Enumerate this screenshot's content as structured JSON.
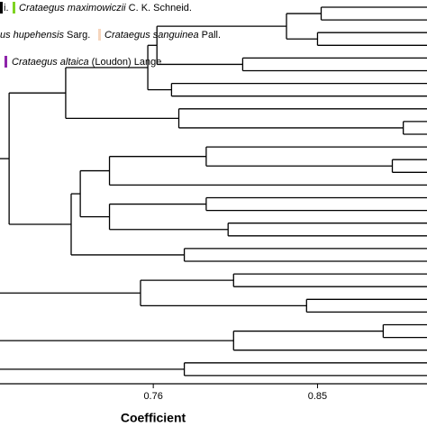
{
  "chart_data": {
    "type": "dendrogram",
    "x_label": "Coefficient",
    "xlim": [
      0.676,
      0.91
    ],
    "xticks": [
      0.76,
      0.85
    ],
    "legend": [
      {
        "name": "i.",
        "color": "#000000"
      },
      {
        "name": "Crataegus maximowiczii",
        "author": "C. K. Schneid.",
        "color": "#7ed321"
      },
      {
        "name": "us hupehensis",
        "author": "Sarg."
      },
      {
        "name": "Crataegus sanguinea",
        "author": "Pall.",
        "color": "#f5d5bd"
      },
      {
        "name": "Crataegus altaica",
        "author": "(Loudon) Lange",
        "color": "#8e24aa"
      }
    ],
    "trees": [
      {
        "height": 0.681,
        "children": [
          {
            "height": 0.712,
            "children": [
              {
                "height": 0.757,
                "children": [
                  {
                    "height": 0.762,
                    "children": [
                      {
                        "height": 0.833,
                        "children": [
                          {
                            "height": 0.852,
                            "children": [
                              null,
                              null
                            ]
                          },
                          {
                            "height": 0.85,
                            "children": [
                              null,
                              null
                            ]
                          }
                        ]
                      },
                      {
                        "height": 0.809,
                        "children": [
                          null,
                          null
                        ]
                      }
                    ]
                  },
                  {
                    "height": 0.77,
                    "children": [
                      null,
                      null
                    ]
                  }
                ]
              },
              {
                "height": 0.774,
                "children": [
                  null,
                  {
                    "height": 0.897,
                    "children": [
                      null,
                      null
                    ]
                  }
                ]
              }
            ]
          },
          {
            "height": 0.715,
            "children": [
              {
                "height": 0.72,
                "children": [
                  {
                    "height": 0.736,
                    "children": [
                      {
                        "height": 0.789,
                        "children": [
                          null,
                          {
                            "height": 0.891,
                            "children": [
                              null,
                              null
                            ]
                          }
                        ]
                      },
                      null
                    ]
                  },
                  {
                    "height": 0.736,
                    "children": [
                      {
                        "height": 0.789,
                        "children": [
                          null,
                          null
                        ]
                      },
                      {
                        "height": 0.801,
                        "children": [
                          null,
                          null
                        ]
                      }
                    ]
                  }
                ]
              },
              {
                "height": 0.777,
                "children": [
                  null,
                  null
                ]
              }
            ]
          }
        ]
      },
      {
        "height": 0.753,
        "children": [
          {
            "height": 0.804,
            "children": [
              null,
              null
            ]
          },
          {
            "height": 0.844,
            "children": [
              null,
              null
            ]
          }
        ]
      },
      {
        "height": 0.804,
        "children": [
          {
            "height": 0.886,
            "children": [
              null,
              null
            ]
          },
          null
        ]
      },
      {
        "height": 0.777,
        "children": [
          null,
          null
        ]
      }
    ]
  }
}
